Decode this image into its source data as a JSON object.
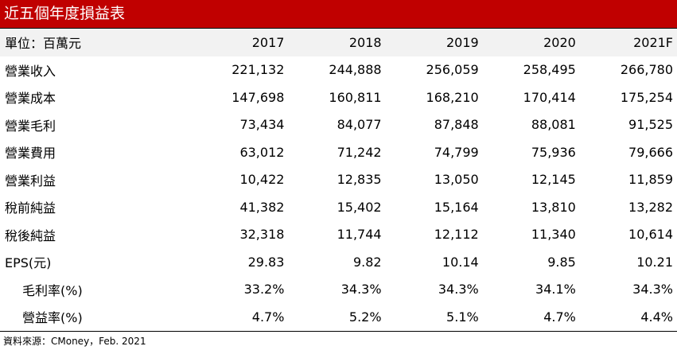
{
  "title": "近五個年度損益表",
  "header": {
    "unit_label": "單位：百萬元",
    "years": [
      "2017",
      "2018",
      "2019",
      "2020",
      "2021F"
    ]
  },
  "rows": [
    {
      "label": "營業收入",
      "values": [
        "221,132",
        "244,888",
        "256,059",
        "258,495",
        "266,780"
      ]
    },
    {
      "label": "營業成本",
      "values": [
        "147,698",
        "160,811",
        "168,210",
        "170,414",
        "175,254"
      ]
    },
    {
      "label": "營業毛利",
      "values": [
        "73,434",
        "84,077",
        "87,848",
        "88,081",
        "91,525"
      ]
    },
    {
      "label": "營業費用",
      "values": [
        "63,012",
        "71,242",
        "74,799",
        "75,936",
        "79,666"
      ]
    },
    {
      "label": "營業利益",
      "values": [
        "10,422",
        "12,835",
        "13,050",
        "12,145",
        "11,859"
      ]
    },
    {
      "label": "稅前純益",
      "values": [
        "41,382",
        "15,402",
        "15,164",
        "13,810",
        "13,282"
      ]
    },
    {
      "label": "稅後純益",
      "values": [
        "32,318",
        "11,744",
        "12,112",
        "11,340",
        "10,614"
      ]
    },
    {
      "label": "EPS(元)",
      "values": [
        "29.83",
        "9.82",
        "10.14",
        "9.85",
        "10.21"
      ]
    },
    {
      "label": "毛利率(%)",
      "values": [
        "33.2%",
        "34.3%",
        "34.3%",
        "34.1%",
        "34.3%"
      ]
    },
    {
      "label": "營益率(%)",
      "values": [
        "4.7%",
        "5.2%",
        "5.1%",
        "4.7%",
        "4.4%"
      ]
    }
  ],
  "source": "資料來源：CMoney，Feb. 2021",
  "colors": {
    "title_background": "#c00000",
    "header_background": "#f2f2f2"
  }
}
